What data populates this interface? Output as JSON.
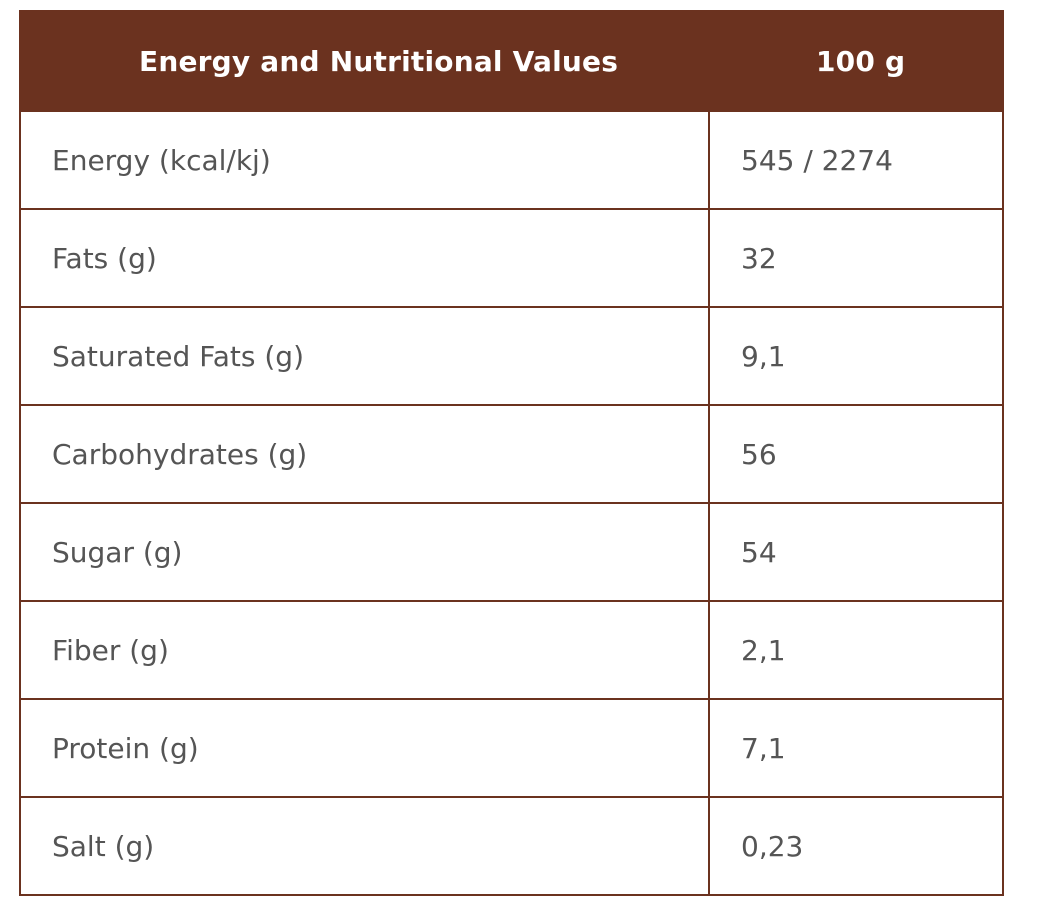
{
  "table": {
    "header": {
      "label": "Energy and Nutritional Values",
      "amount": "100 g"
    },
    "rows": [
      {
        "name": "Energy (kcal/kj)",
        "value": "545 / 2274"
      },
      {
        "name": "Fats (g)",
        "value": "32"
      },
      {
        "name": "Saturated Fats (g)",
        "value": "9,1"
      },
      {
        "name": "Carbohydrates (g)",
        "value": "56"
      },
      {
        "name": "Sugar (g)",
        "value": "54"
      },
      {
        "name": "Fiber (g)",
        "value": "2,1"
      },
      {
        "name": "Protein (g)",
        "value": "7,1"
      },
      {
        "name": "Salt (g)",
        "value": "0,23"
      }
    ]
  },
  "colors": {
    "header_bg": "#6b321f",
    "border": "#6b321f",
    "text": "#555555",
    "header_text": "#ffffff"
  }
}
